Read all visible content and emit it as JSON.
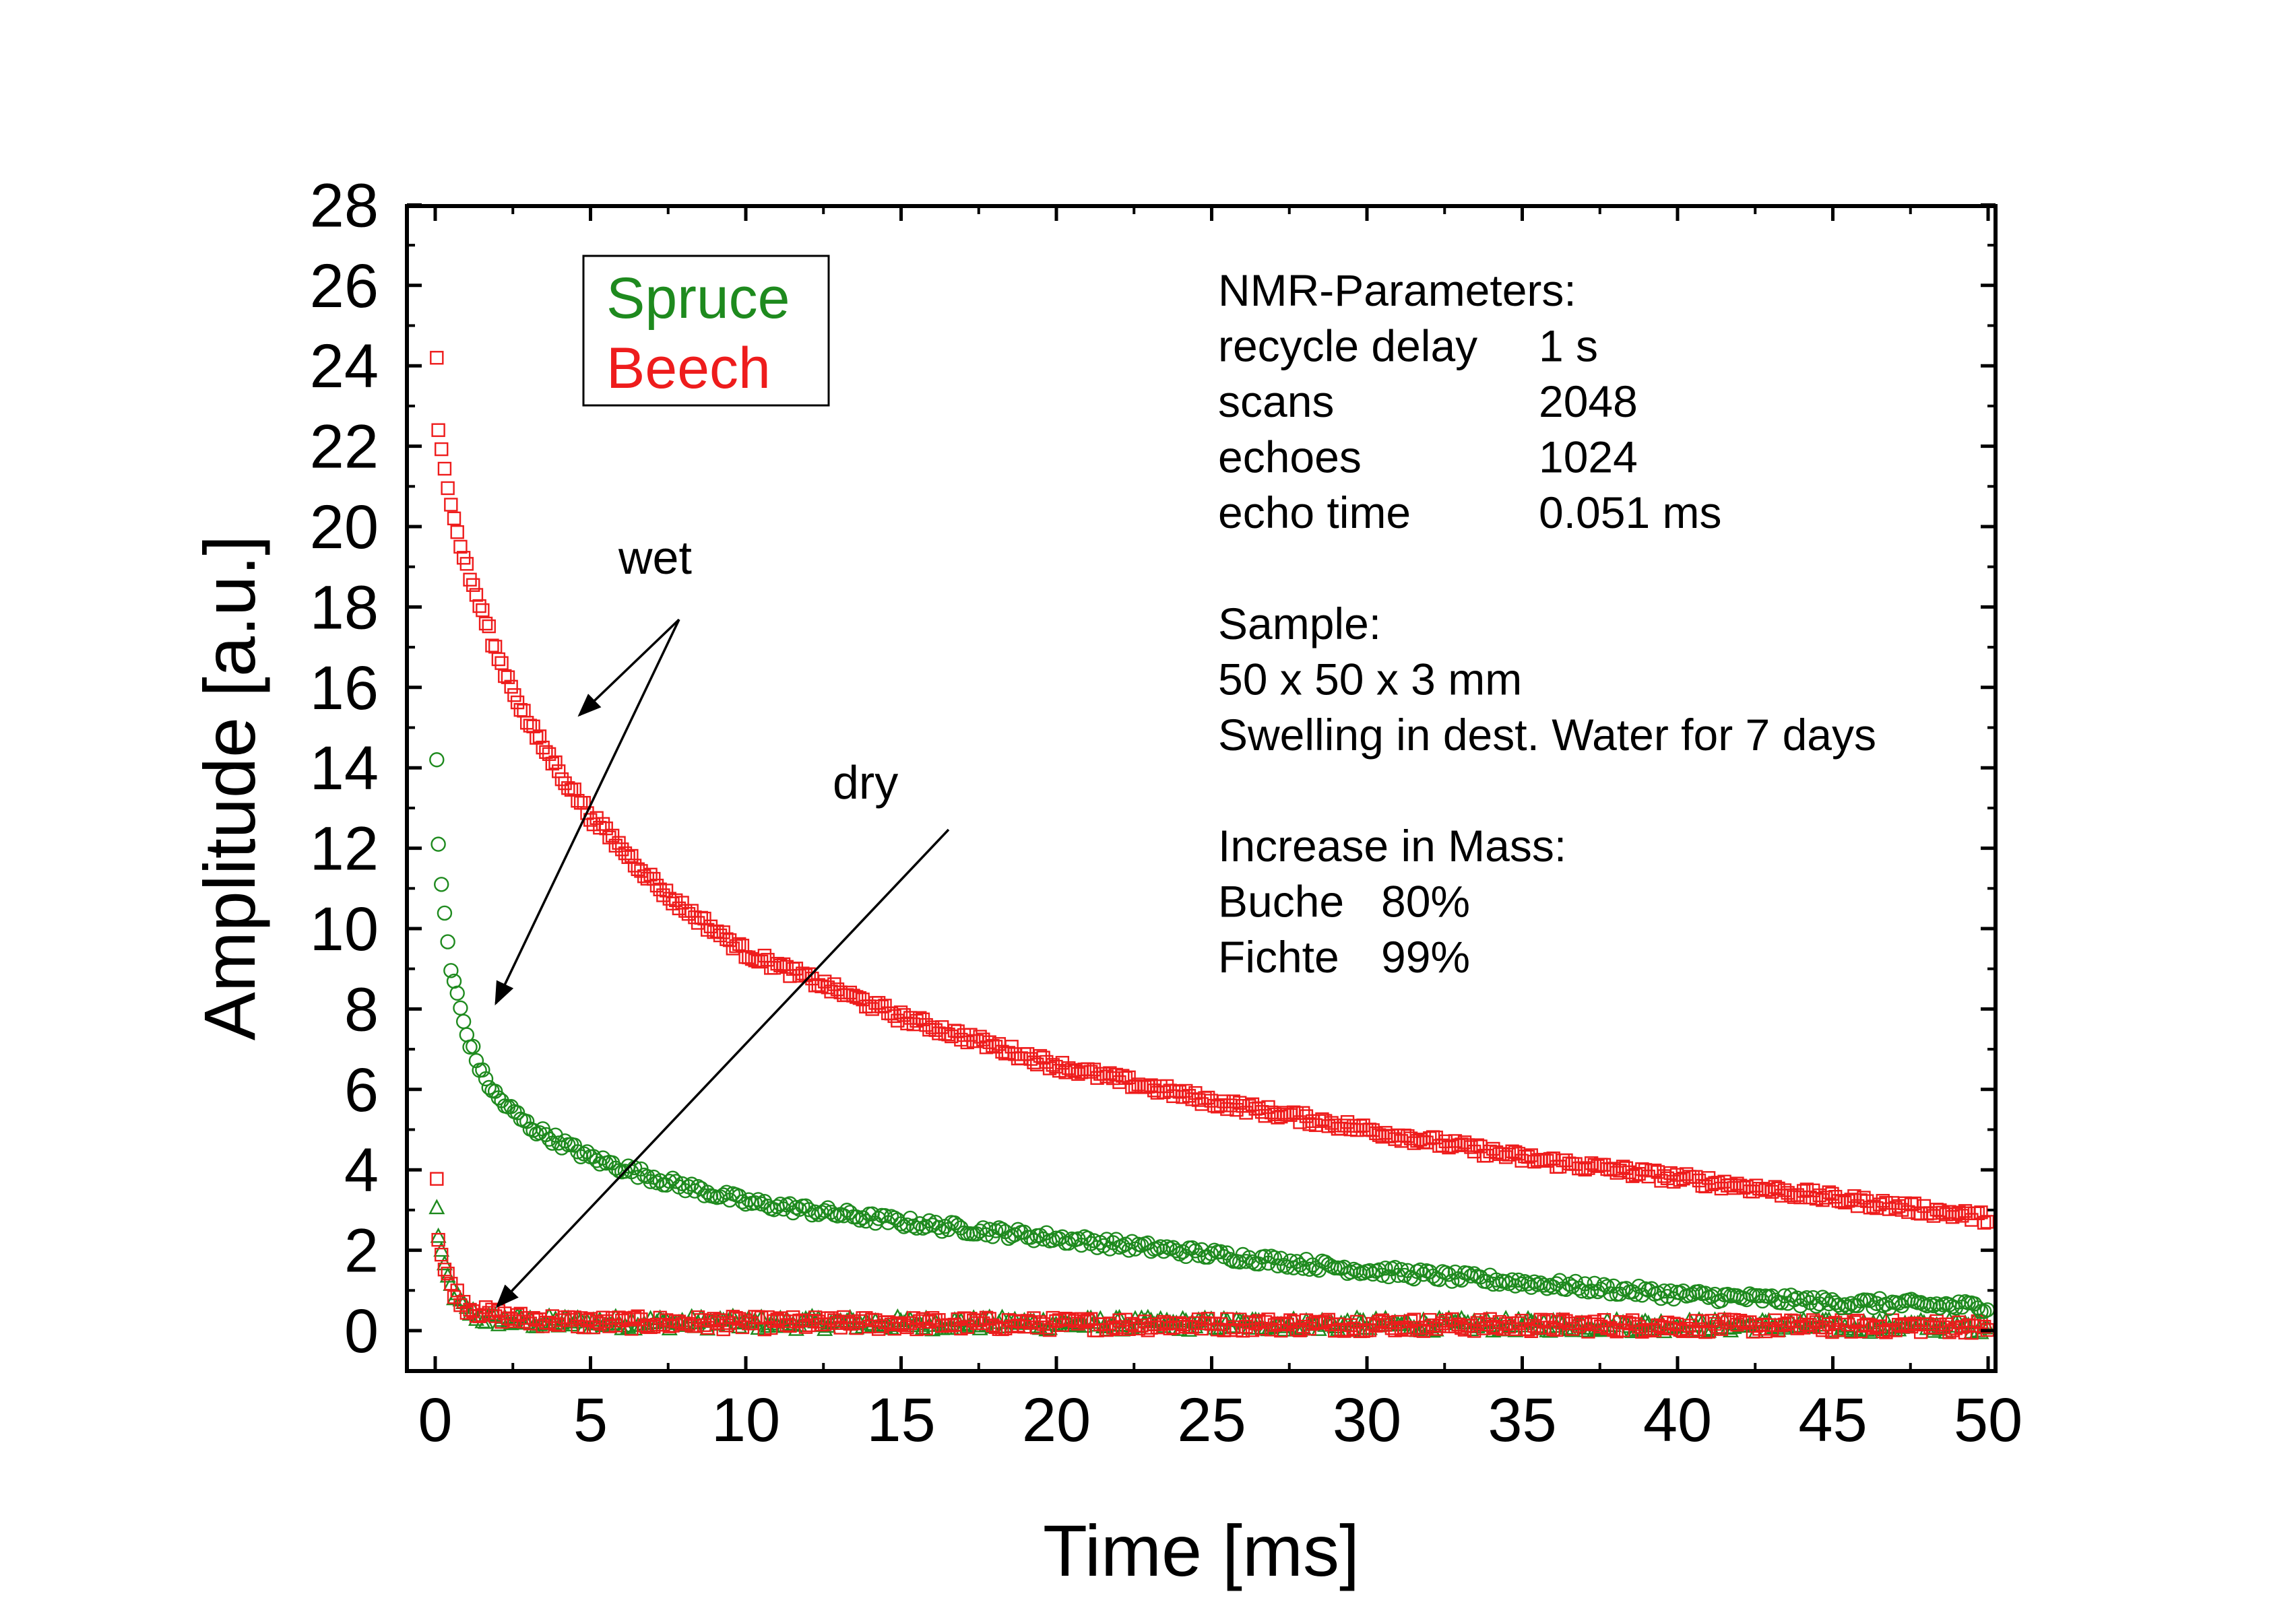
{
  "chart_data": {
    "type": "scatter",
    "xlabel": "Time [ms]",
    "ylabel": "Amplitude [a.u.]",
    "xlim": [
      0,
      50
    ],
    "ylim": [
      -1,
      28
    ],
    "xticks": [
      0,
      5,
      10,
      15,
      20,
      25,
      30,
      35,
      40,
      45,
      50
    ],
    "yticks": [
      0,
      2,
      4,
      6,
      8,
      10,
      12,
      14,
      16,
      18,
      20,
      22,
      24,
      26,
      28
    ],
    "grid": false,
    "legend": {
      "placement": "top-left",
      "entries": [
        {
          "label": "Spruce",
          "color": "#1e8a1e"
        },
        {
          "label": "Beech",
          "color": "#ee1c1c"
        }
      ]
    },
    "series": [
      {
        "name": "Beech",
        "state": "wet",
        "color": "#ee1c1c",
        "marker": "square",
        "key_points": [
          [
            0.05,
            24.2
          ],
          [
            0.1,
            22.4
          ],
          [
            0.5,
            20.5
          ],
          [
            1,
            19.0
          ],
          [
            2,
            16.8
          ],
          [
            3,
            15.1
          ],
          [
            4,
            13.9
          ],
          [
            5,
            12.8
          ],
          [
            7.5,
            10.8
          ],
          [
            10,
            9.4
          ],
          [
            12.5,
            8.6
          ],
          [
            15,
            7.8
          ],
          [
            20,
            6.6
          ],
          [
            25,
            5.7
          ],
          [
            30,
            5.0
          ],
          [
            35,
            4.3
          ],
          [
            40,
            3.8
          ],
          [
            45,
            3.3
          ],
          [
            50,
            2.8
          ]
        ]
      },
      {
        "name": "Spruce",
        "state": "wet",
        "color": "#1e8a1e",
        "marker": "circle",
        "key_points": [
          [
            0.05,
            14.2
          ],
          [
            0.1,
            12.1
          ],
          [
            0.2,
            11.1
          ],
          [
            0.5,
            9.0
          ],
          [
            1,
            7.4
          ],
          [
            1.5,
            6.4
          ],
          [
            2,
            5.8
          ],
          [
            3,
            5.1
          ],
          [
            5,
            4.3
          ],
          [
            7.5,
            3.7
          ],
          [
            10,
            3.2
          ],
          [
            15,
            2.7
          ],
          [
            20,
            2.3
          ],
          [
            25,
            1.9
          ],
          [
            30,
            1.5
          ],
          [
            35,
            1.2
          ],
          [
            40,
            0.9
          ],
          [
            45,
            0.7
          ],
          [
            50,
            0.6
          ]
        ]
      },
      {
        "name": "Beech",
        "state": "dry",
        "color": "#ee1c1c",
        "marker": "square",
        "key_points": [
          [
            0.05,
            3.9
          ],
          [
            0.1,
            2.3
          ],
          [
            0.3,
            1.5
          ],
          [
            0.6,
            1.0
          ],
          [
            1,
            0.6
          ],
          [
            1.5,
            0.45
          ],
          [
            2.5,
            0.3
          ],
          [
            5,
            0.2
          ],
          [
            50,
            0.1
          ]
        ]
      },
      {
        "name": "Spruce",
        "state": "dry",
        "color": "#1e8a1e",
        "marker": "triangle",
        "key_points": [
          [
            0.05,
            3.0
          ],
          [
            0.1,
            2.4
          ],
          [
            0.3,
            1.5
          ],
          [
            0.6,
            0.9
          ],
          [
            1,
            0.5
          ],
          [
            1.5,
            0.3
          ],
          [
            3,
            0.2
          ],
          [
            50,
            0.1
          ]
        ]
      }
    ],
    "annotations": {
      "wet": "wet",
      "dry": "dry"
    },
    "info_box": [
      {
        "label": "NMR-Parameters:",
        "value": ""
      },
      {
        "label": "recycle delay",
        "value": "1 s"
      },
      {
        "label": "scans",
        "value": "2048"
      },
      {
        "label": "echoes",
        "value": "1024"
      },
      {
        "label": "echo time",
        "value": "0.051 ms"
      },
      {
        "label": "",
        "value": ""
      },
      {
        "label": "Sample:",
        "value": ""
      },
      {
        "label": "50 x 50 x 3 mm",
        "value": ""
      },
      {
        "label": "Swelling in dest. Water for 7 days",
        "value": ""
      },
      {
        "label": "",
        "value": ""
      },
      {
        "label": "Increase in Mass:",
        "value": ""
      },
      {
        "label": "Buche",
        "value": "80%"
      },
      {
        "label": "Fichte",
        "value": "99%"
      }
    ]
  }
}
